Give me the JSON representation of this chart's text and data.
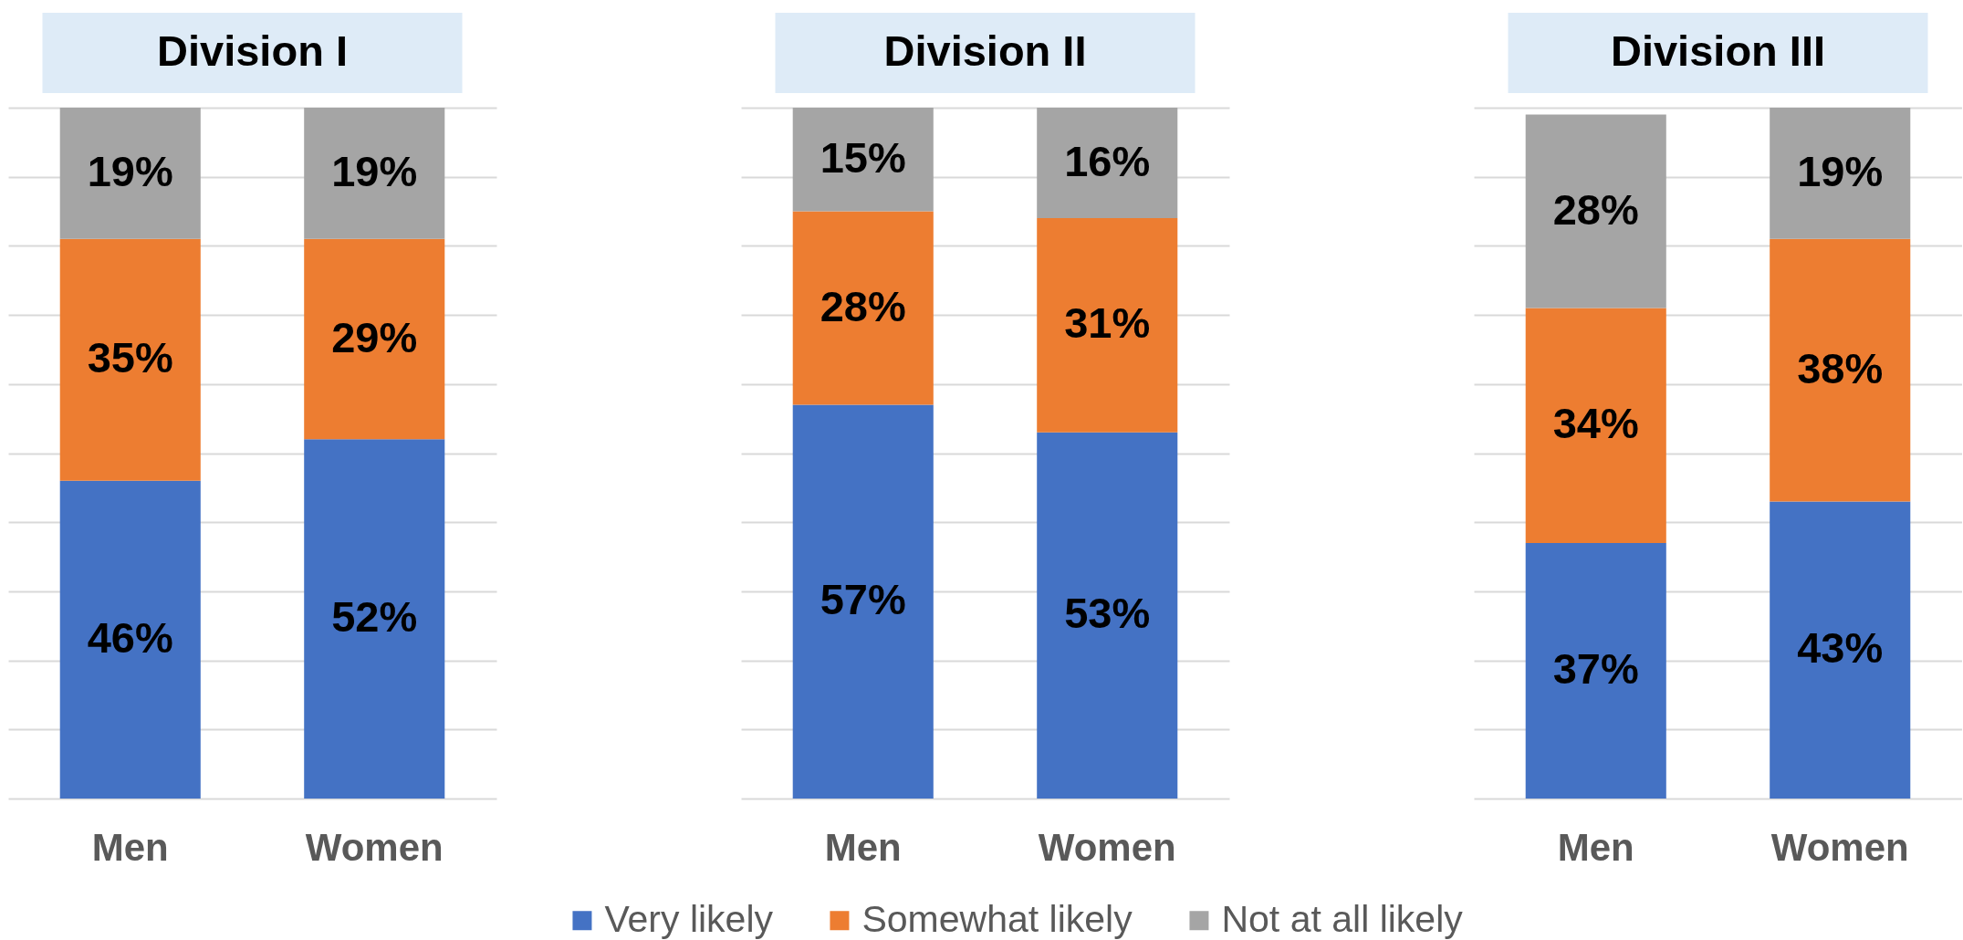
{
  "chart_data": [
    {
      "type": "bar",
      "title": "Division I",
      "categories": [
        "Men",
        "Women"
      ],
      "stacked": true,
      "series": [
        {
          "name": "Very likely",
          "color": "#4472c4",
          "values": [
            46,
            52
          ],
          "value_labels": [
            "46%",
            "52%"
          ]
        },
        {
          "name": "Somewhat likely",
          "color": "#ed7d31",
          "values": [
            35,
            29
          ],
          "value_labels": [
            "35%",
            "29%"
          ]
        },
        {
          "name": "Not at all likely",
          "color": "#a5a5a5",
          "values": [
            19,
            19
          ],
          "value_labels": [
            "19%",
            "19%"
          ]
        }
      ],
      "ylim": [
        0,
        100
      ],
      "yticks": [
        0,
        10,
        20,
        30,
        40,
        50,
        60,
        70,
        80,
        90,
        100
      ],
      "grid": "y",
      "legend": "bottom",
      "tick_labels": "x"
    },
    {
      "type": "bar",
      "title": "Division II",
      "categories": [
        "Men",
        "Women"
      ],
      "stacked": true,
      "series": [
        {
          "name": "Very likely",
          "color": "#4472c4",
          "values": [
            57,
            53
          ],
          "value_labels": [
            "57%",
            "53%"
          ]
        },
        {
          "name": "Somewhat likely",
          "color": "#ed7d31",
          "values": [
            28,
            31
          ],
          "value_labels": [
            "28%",
            "31%"
          ]
        },
        {
          "name": "Not at all likely",
          "color": "#a5a5a5",
          "values": [
            15,
            16
          ],
          "value_labels": [
            "15%",
            "16%"
          ]
        }
      ],
      "ylim": [
        0,
        100
      ],
      "yticks": [
        0,
        10,
        20,
        30,
        40,
        50,
        60,
        70,
        80,
        90,
        100
      ],
      "grid": "y",
      "legend": "bottom",
      "tick_labels": "x"
    },
    {
      "type": "bar",
      "title": "Division III",
      "categories": [
        "Men",
        "Women"
      ],
      "stacked": true,
      "series": [
        {
          "name": "Very likely",
          "color": "#4472c4",
          "values": [
            37,
            43
          ],
          "value_labels": [
            "37%",
            "43%"
          ]
        },
        {
          "name": "Somewhat likely",
          "color": "#ed7d31",
          "values": [
            34,
            38
          ],
          "value_labels": [
            "34%",
            "38%"
          ]
        },
        {
          "name": "Not at all likely",
          "color": "#a5a5a5",
          "values": [
            28,
            19
          ],
          "value_labels": [
            "28%",
            "19%"
          ]
        }
      ],
      "ylim": [
        0,
        100
      ],
      "yticks": [
        0,
        10,
        20,
        30,
        40,
        50,
        60,
        70,
        80,
        90,
        100
      ],
      "grid": "y",
      "legend": "bottom",
      "tick_labels": "x"
    }
  ]
}
